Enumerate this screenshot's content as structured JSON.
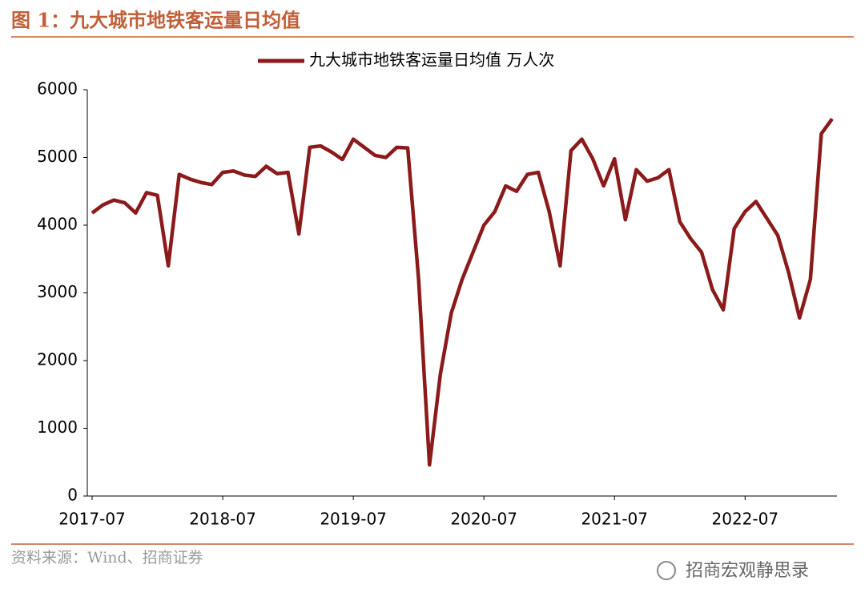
{
  "header": {
    "title": "图 1：九大城市地铁客运量日均值"
  },
  "chart_data": {
    "type": "line",
    "categories": [
      "2017-07",
      null,
      null,
      null,
      null,
      null,
      null,
      null,
      null,
      null,
      null,
      null,
      "2018-07",
      null,
      null,
      null,
      null,
      null,
      null,
      null,
      null,
      null,
      null,
      null,
      "2019-07",
      null,
      null,
      null,
      null,
      null,
      null,
      null,
      null,
      null,
      null,
      null,
      "2020-07",
      null,
      null,
      null,
      null,
      null,
      null,
      null,
      null,
      null,
      null,
      null,
      "2021-07",
      null,
      null,
      null,
      null,
      null,
      null,
      null,
      null,
      null,
      null,
      null,
      "2022-07",
      null,
      null,
      null,
      null,
      null,
      null,
      null,
      null
    ],
    "series": [
      {
        "name": "九大城市地铁客运量日均值 万人次",
        "color": "#8b1a1a",
        "values": [
          4180,
          4300,
          4370,
          4330,
          4180,
          4480,
          4440,
          3400,
          4750,
          4680,
          4630,
          4600,
          4780,
          4800,
          4740,
          4720,
          4870,
          4760,
          4780,
          3870,
          5150,
          5170,
          5080,
          4970,
          5270,
          5150,
          5030,
          5000,
          5150,
          5140,
          3200,
          460,
          1800,
          2700,
          3200,
          3600,
          4000,
          4200,
          4580,
          4500,
          4750,
          4780,
          4200,
          3400,
          5100,
          5270,
          4980,
          4580,
          4980,
          4080,
          4820,
          4650,
          4700,
          4820,
          4050,
          3800,
          3600,
          3050,
          2750,
          3950,
          4200,
          4350,
          4100,
          3850,
          3300,
          2630,
          3200,
          5350,
          5570
        ]
      }
    ],
    "ylim": [
      0,
      6000
    ],
    "yticks": [
      0,
      1000,
      2000,
      3000,
      4000,
      5000,
      6000
    ],
    "grid": false,
    "legend": "top"
  },
  "footer": {
    "source": "资料来源：Wind、招商证券",
    "watermark": "招商宏观静思录"
  }
}
